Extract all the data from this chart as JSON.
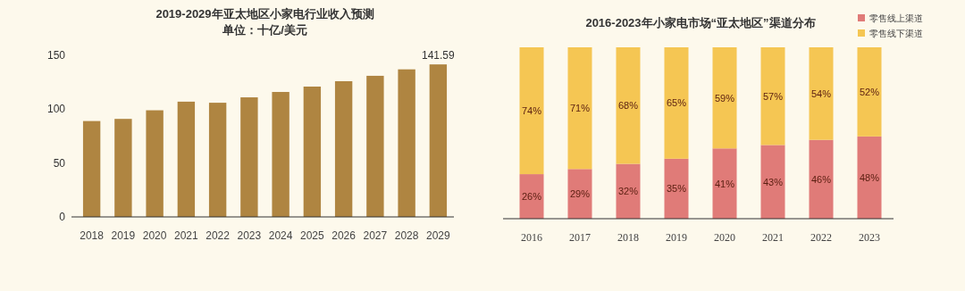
{
  "chart_data": [
    {
      "type": "bar",
      "title": "2019-2029年亚太地区小家电行业收入预测",
      "subtitle": "单位：十亿/美元",
      "categories": [
        "2018",
        "2019",
        "2020",
        "2021",
        "2022",
        "2023",
        "2024",
        "2025",
        "2026",
        "2027",
        "2028",
        "2029"
      ],
      "values": [
        89,
        91,
        99,
        107,
        106,
        111,
        116,
        121,
        126,
        131,
        137,
        141.59
      ],
      "value_labels": [
        null,
        null,
        null,
        null,
        null,
        null,
        null,
        null,
        null,
        null,
        null,
        "141.59"
      ],
      "color": "#af8541",
      "ylim": [
        0,
        150
      ],
      "yticks": [
        0,
        50,
        100,
        150
      ]
    },
    {
      "type": "bar",
      "title": "2016-2023年小家电市场“亚太地区”渠道分布",
      "stacked": true,
      "categories": [
        "2016",
        "2017",
        "2018",
        "2019",
        "2020",
        "2021",
        "2022",
        "2023"
      ],
      "series": [
        {
          "name": "零售线上渠道",
          "color": "#e07b78",
          "values": [
            26,
            29,
            32,
            35,
            41,
            43,
            46,
            48
          ],
          "value_labels": [
            "26%",
            "29%",
            "32%",
            "35%",
            "41%",
            "43%",
            "46%",
            "48%"
          ]
        },
        {
          "name": "零售线下渠道",
          "color": "#f5c653",
          "values": [
            74,
            71,
            68,
            65,
            59,
            57,
            54,
            52
          ],
          "value_labels": [
            "74%",
            "71%",
            "68%",
            "65%",
            "59%",
            "57%",
            "54%",
            "52%"
          ]
        }
      ],
      "tick_labels": "x",
      "legend": "top right"
    }
  ]
}
